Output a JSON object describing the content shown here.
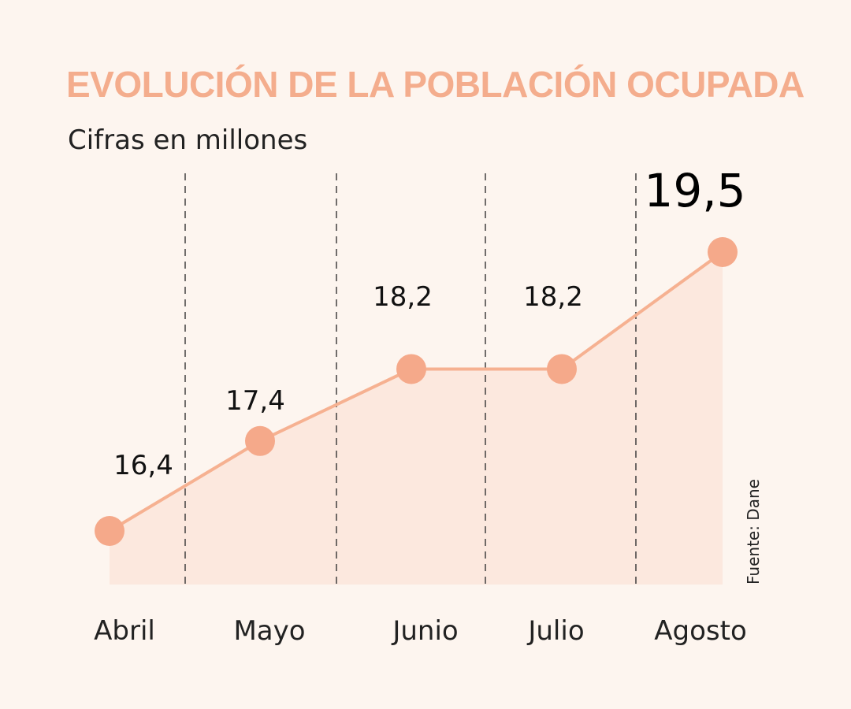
{
  "chart_data": {
    "type": "area",
    "title": "EVOLUCIÓN DE LA POBLACIÓN OCUPADA",
    "subtitle": "Cifras en millones",
    "categories": [
      "Abril",
      "Mayo",
      "Junio",
      "Julio",
      "Agosto"
    ],
    "values": [
      16.4,
      17.4,
      18.2,
      18.2,
      19.5
    ],
    "value_labels": [
      "16,4",
      "17,4",
      "18,2",
      "18,2",
      "19,5"
    ],
    "highlight_index": 4,
    "source": "Fuente: Dane",
    "xlabel": "",
    "ylabel": "",
    "ylim": [
      15.7,
      20.2
    ],
    "grid": false
  },
  "colors": {
    "background": "#fdf5ef",
    "title": "#f4ad8d",
    "line": "#f6b191",
    "marker": "#f5a98a",
    "fill": "#fbe5da",
    "divider": "#333333"
  }
}
